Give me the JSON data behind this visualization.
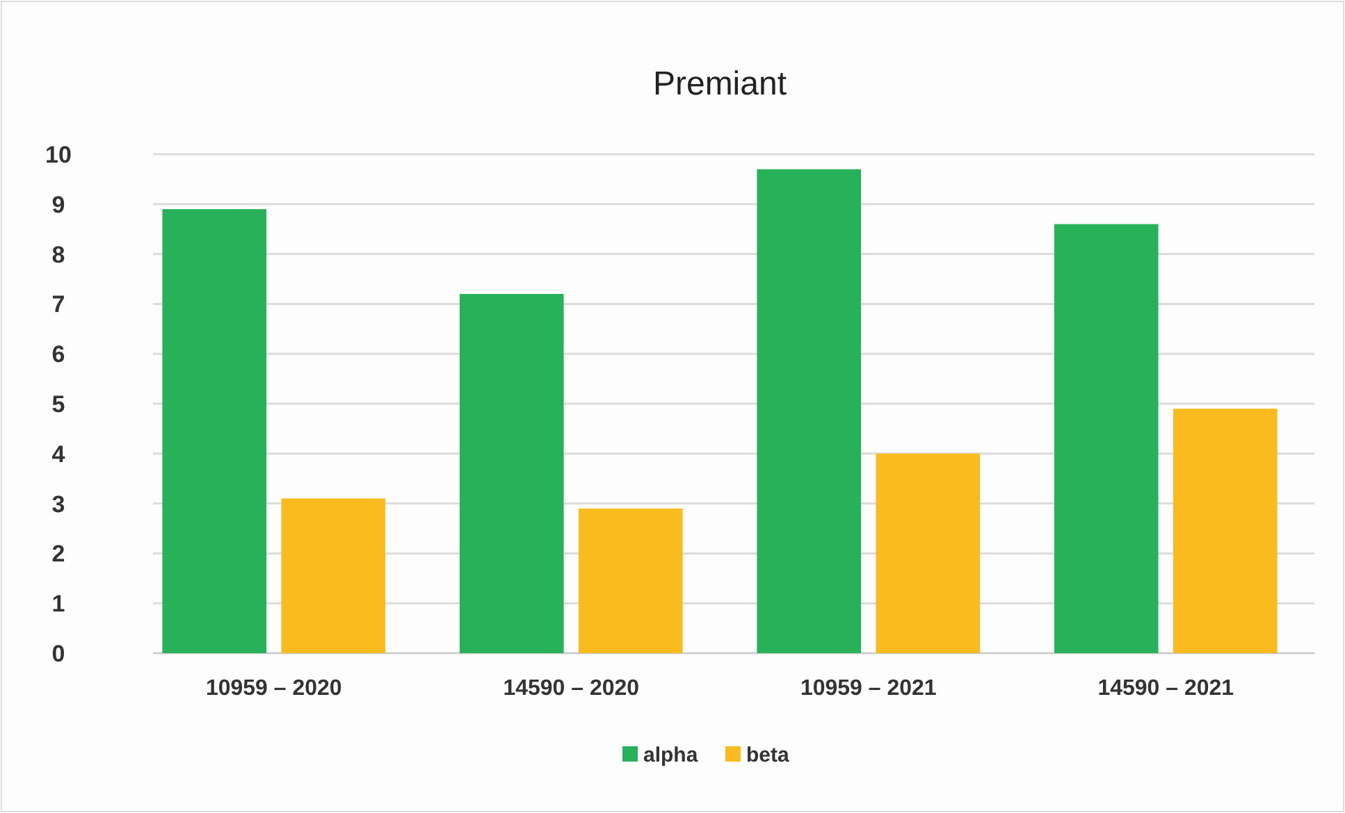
{
  "chart_data": {
    "type": "bar",
    "title": "Premiant",
    "categories": [
      "10959 – 2020",
      "14590 – 2020",
      "10959 – 2021",
      "14590 – 2021"
    ],
    "series": [
      {
        "name": "alpha",
        "color": "#27b158",
        "values": [
          8.9,
          7.2,
          9.7,
          8.6
        ]
      },
      {
        "name": "beta",
        "color": "#f9bb1e",
        "values": [
          3.1,
          2.9,
          4.0,
          4.9
        ]
      }
    ],
    "ylim": [
      0,
      10
    ],
    "yticks": [
      0,
      1,
      2,
      3,
      4,
      5,
      6,
      7,
      8,
      9,
      10
    ],
    "grid": "y",
    "legend": "bottom"
  }
}
